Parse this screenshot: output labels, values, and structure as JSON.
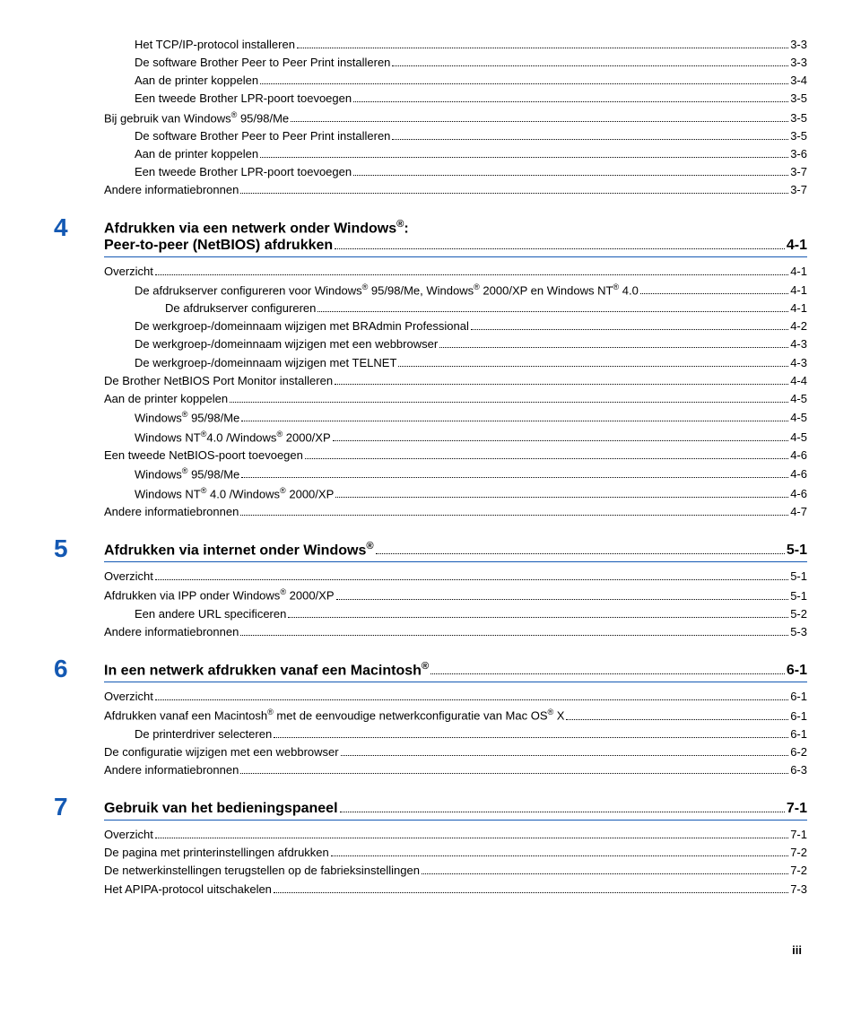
{
  "orphan_section": {
    "entries": [
      {
        "level": 2,
        "label": "Het TCP/IP-protocol installeren",
        "page": "3-3"
      },
      {
        "level": 2,
        "label": "De software Brother Peer to Peer Print installeren",
        "page": "3-3"
      },
      {
        "level": 2,
        "label": "Aan de printer koppelen",
        "page": "3-4"
      },
      {
        "level": 2,
        "label": "Een tweede Brother LPR-poort toevoegen",
        "page": "3-5"
      },
      {
        "level": 1,
        "label": "Bij gebruik van Windows® 95/98/Me",
        "page": "3-5"
      },
      {
        "level": 2,
        "label": "De software Brother Peer to Peer Print installeren",
        "page": "3-5"
      },
      {
        "level": 2,
        "label": "Aan de printer koppelen",
        "page": "3-6"
      },
      {
        "level": 2,
        "label": "Een tweede Brother LPR-poort toevoegen",
        "page": "3-7"
      },
      {
        "level": 1,
        "label": "Andere informatiebronnen",
        "page": "3-7"
      }
    ]
  },
  "chapters": [
    {
      "num": "4",
      "title_lines": [
        "Afdrukken via een netwerk onder Windows®:",
        "Peer-to-peer (NetBIOS) afdrukken"
      ],
      "title_page": "4-1",
      "entries": [
        {
          "level": 1,
          "label": "Overzicht",
          "page": "4-1"
        },
        {
          "level": 2,
          "label": "De afdrukserver configureren voor Windows® 95/98/Me, Windows® 2000/XP en Windows NT® 4.0",
          "page": "4-1"
        },
        {
          "level": 3,
          "label": "De afdrukserver configureren",
          "page": "4-1"
        },
        {
          "level": 2,
          "label": "De werkgroep-/domeinnaam wijzigen met BRAdmin Professional",
          "page": "4-2"
        },
        {
          "level": 2,
          "label": "De werkgroep-/domeinnaam wijzigen met een webbrowser",
          "page": "4-3"
        },
        {
          "level": 2,
          "label": "De werkgroep-/domeinnaam wijzigen met TELNET",
          "page": "4-3"
        },
        {
          "level": 1,
          "label": "De Brother NetBIOS Port Monitor installeren",
          "page": "4-4"
        },
        {
          "level": 1,
          "label": "Aan de printer koppelen",
          "page": "4-5"
        },
        {
          "level": 2,
          "label": "Windows® 95/98/Me",
          "page": "4-5"
        },
        {
          "level": 2,
          "label": "Windows NT®4.0 /Windows® 2000/XP",
          "page": "4-5"
        },
        {
          "level": 1,
          "label": "Een tweede NetBIOS-poort toevoegen",
          "page": "4-6"
        },
        {
          "level": 2,
          "label": "Windows® 95/98/Me",
          "page": "4-6"
        },
        {
          "level": 2,
          "label": "Windows NT® 4.0 /Windows® 2000/XP",
          "page": "4-6"
        },
        {
          "level": 1,
          "label": "Andere informatiebronnen",
          "page": "4-7"
        }
      ]
    },
    {
      "num": "5",
      "title_lines": [
        "Afdrukken via internet onder Windows®"
      ],
      "title_page": "5-1",
      "entries": [
        {
          "level": 1,
          "label": "Overzicht",
          "page": "5-1"
        },
        {
          "level": 1,
          "label": "Afdrukken via IPP onder Windows® 2000/XP",
          "page": "5-1"
        },
        {
          "level": 2,
          "label": "Een andere URL specificeren",
          "page": "5-2"
        },
        {
          "level": 1,
          "label": "Andere informatiebronnen",
          "page": "5-3"
        }
      ]
    },
    {
      "num": "6",
      "title_lines": [
        "In een netwerk afdrukken vanaf een Macintosh®"
      ],
      "title_page": "6-1",
      "entries": [
        {
          "level": 1,
          "label": "Overzicht",
          "page": "6-1"
        },
        {
          "level": 1,
          "label": "Afdrukken vanaf een Macintosh® met de eenvoudige netwerkconfiguratie van Mac OS® X",
          "page": "6-1"
        },
        {
          "level": 2,
          "label": "De printerdriver selecteren",
          "page": "6-1"
        },
        {
          "level": 1,
          "label": "De configuratie wijzigen met een webbrowser",
          "page": "6-2"
        },
        {
          "level": 1,
          "label": "Andere informatiebronnen",
          "page": "6-3"
        }
      ]
    },
    {
      "num": "7",
      "title_lines": [
        "Gebruik van het bedieningspaneel"
      ],
      "title_page": "7-1",
      "entries": [
        {
          "level": 1,
          "label": "Overzicht",
          "page": "7-1"
        },
        {
          "level": 1,
          "label": "De pagina met printerinstellingen afdrukken",
          "page": "7-2"
        },
        {
          "level": 1,
          "label": "De netwerkinstellingen terugstellen op de fabrieksinstellingen",
          "page": "7-2"
        },
        {
          "level": 1,
          "label": "Het APIPA-protocol uitschakelen",
          "page": "7-3"
        }
      ]
    }
  ],
  "footer_page": "iii",
  "colors": {
    "chapter_num": "#1459b3",
    "rule": "#1459b3",
    "text": "#000000",
    "background": "#ffffff"
  },
  "typography": {
    "body_font": "Arial",
    "body_size_pt": 10,
    "chapter_num_size_pt": 21,
    "chapter_title_size_pt": 12
  }
}
